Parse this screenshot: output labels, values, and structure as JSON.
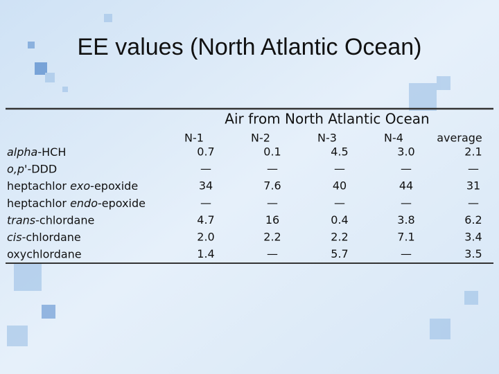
{
  "title": "EE values (North Atlantic Ocean)",
  "table": {
    "group_header": "Air from North Atlantic Ocean",
    "columns": [
      "N-1",
      "N-2",
      "N-3",
      "N-4",
      "average"
    ],
    "rows": [
      {
        "label": [
          {
            "text": "alpha",
            "italic": true
          },
          {
            "text": "-HCH"
          }
        ],
        "cells": [
          "0.7",
          "0.1",
          "4.5",
          "3.0",
          "2.1"
        ]
      },
      {
        "label": [
          {
            "text": "o,p'",
            "italic": true
          },
          {
            "text": "-DDD"
          }
        ],
        "cells": [
          "—",
          "—",
          "—",
          "—",
          "—"
        ]
      },
      {
        "label": [
          {
            "text": "heptachlor "
          },
          {
            "text": "exo",
            "italic": true
          },
          {
            "text": "-epoxide"
          }
        ],
        "cells": [
          "34",
          "7.6",
          "40",
          "44",
          "31"
        ]
      },
      {
        "label": [
          {
            "text": "heptachlor "
          },
          {
            "text": "endo",
            "italic": true
          },
          {
            "text": "-epoxide"
          }
        ],
        "cells": [
          "—",
          "—",
          "—",
          "—",
          "—"
        ]
      },
      {
        "label": [
          {
            "text": "trans",
            "italic": true
          },
          {
            "text": "-chlordane"
          }
        ],
        "cells": [
          "4.7",
          "16",
          "0.4",
          "3.8",
          "6.2"
        ]
      },
      {
        "label": [
          {
            "text": "cis",
            "italic": true
          },
          {
            "text": "-chlordane"
          }
        ],
        "cells": [
          "2.0",
          "2.2",
          "2.2",
          "7.1",
          "3.4"
        ]
      },
      {
        "label": [
          {
            "text": "oxychlordane"
          }
        ],
        "cells": [
          "1.4",
          "—",
          "5.7",
          "—",
          "3.5"
        ]
      }
    ]
  }
}
